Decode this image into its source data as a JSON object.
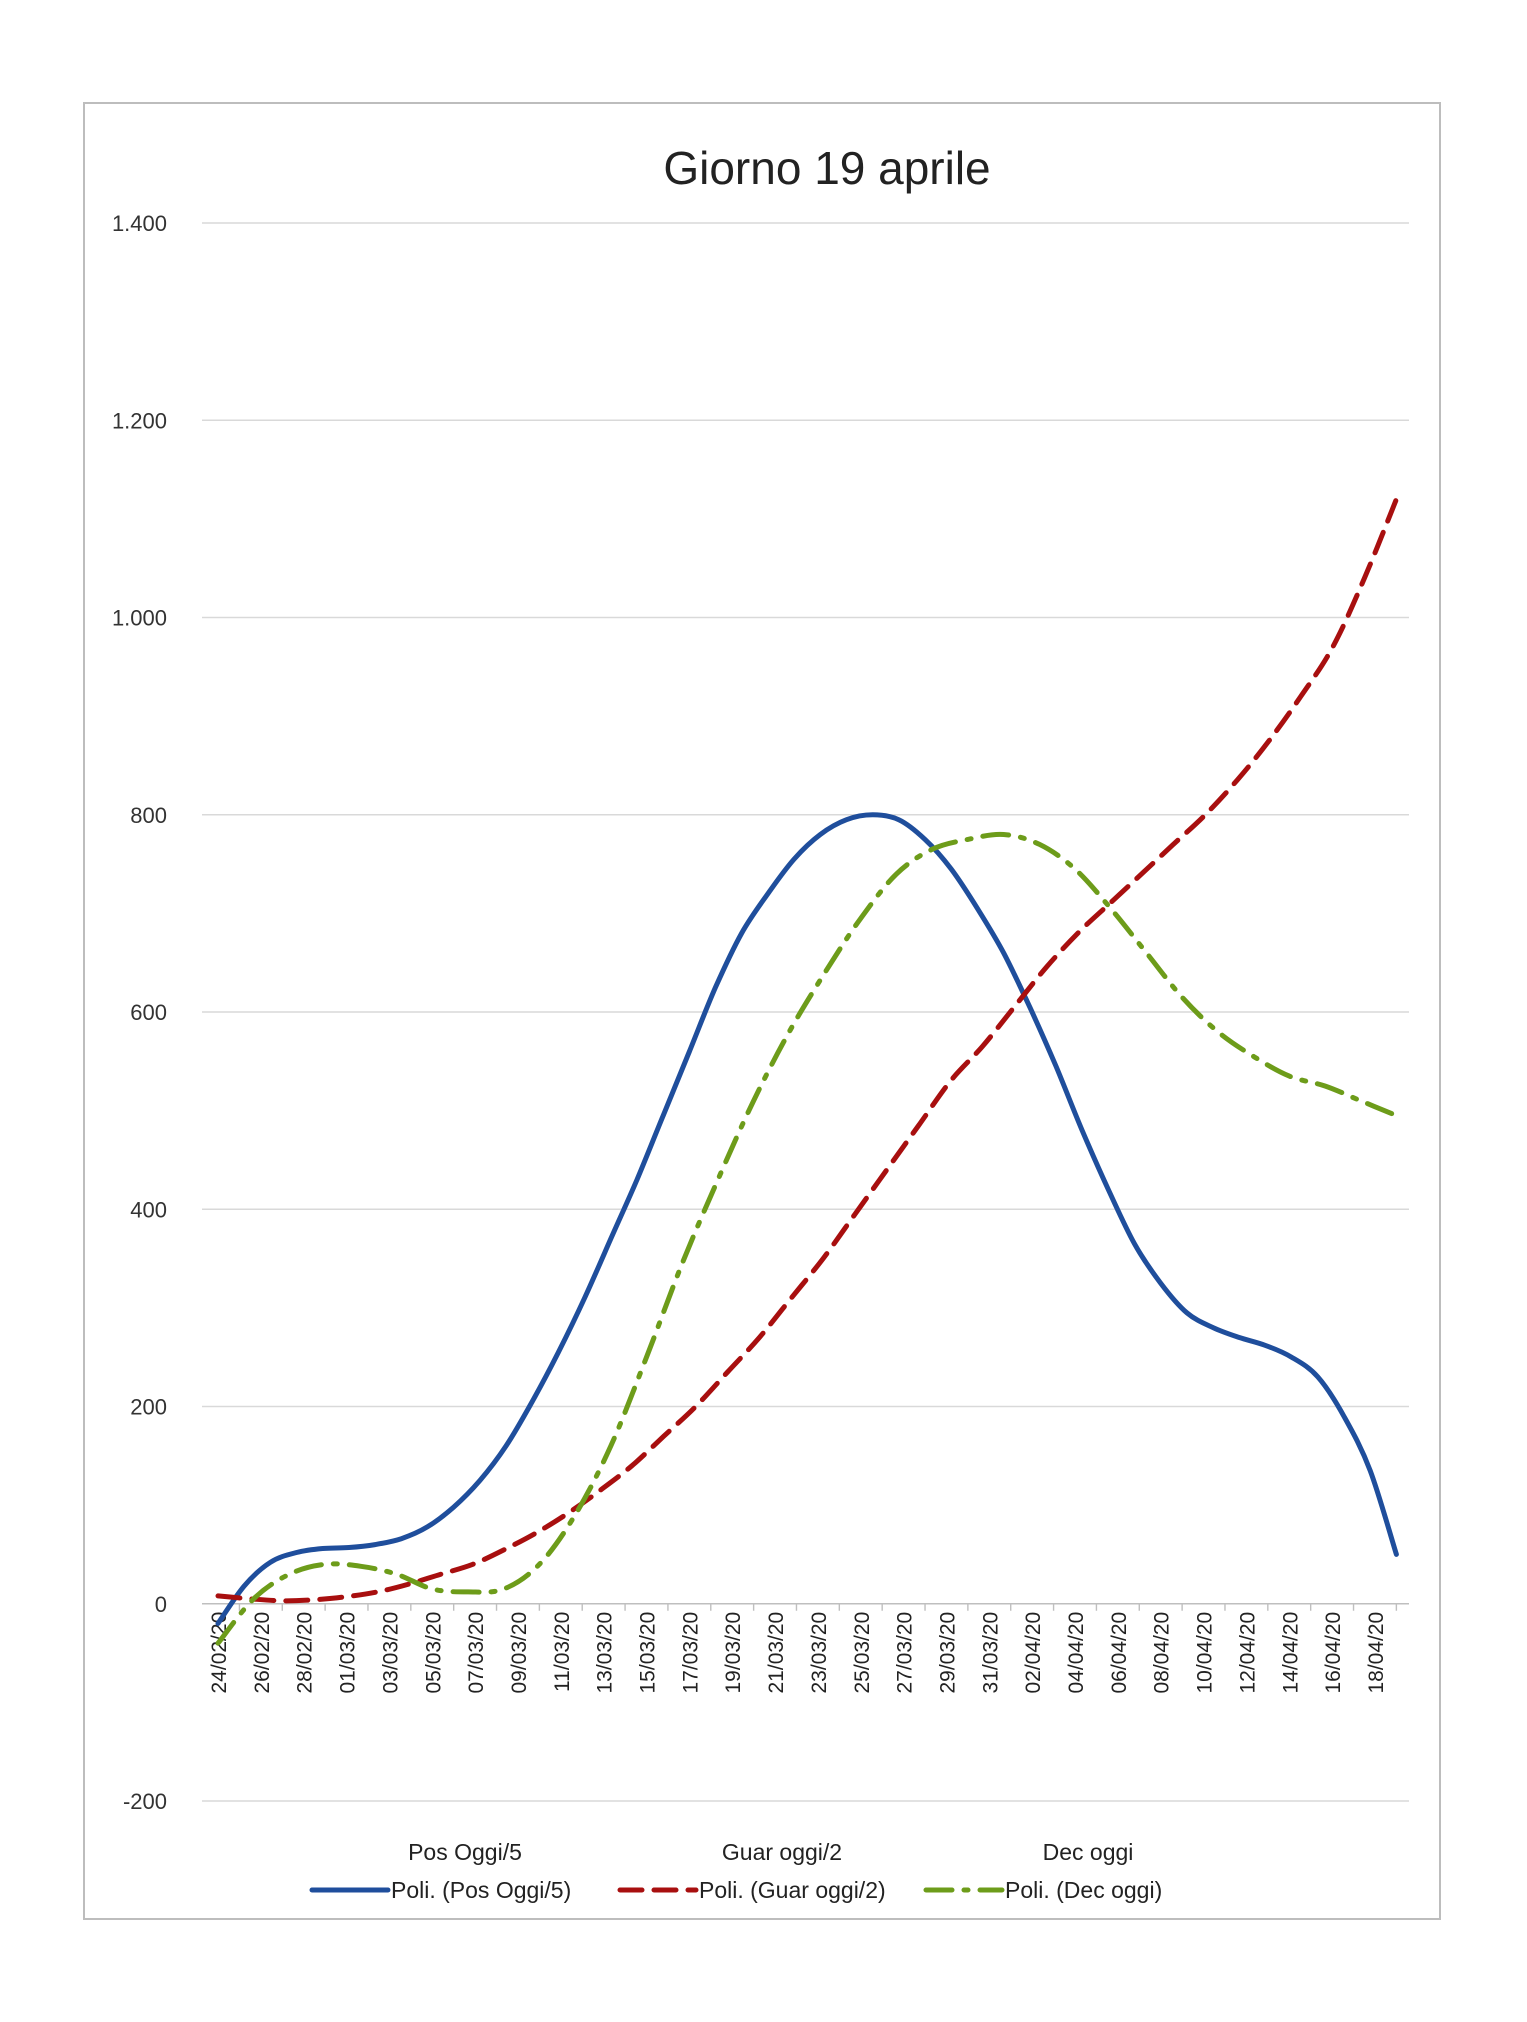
{
  "chart_data": {
    "type": "line",
    "title": "Giorno 19 aprile",
    "xlabel": "",
    "ylabel": "",
    "ylim": [
      -200,
      1400
    ],
    "yticks": [
      -200,
      0,
      200,
      400,
      600,
      800,
      1000,
      1200,
      1400
    ],
    "ytick_labels": [
      "-200",
      "0",
      "200",
      "400",
      "600",
      "800",
      "1.000",
      "1.200",
      "1.400"
    ],
    "grid": true,
    "legend_position": "bottom",
    "x_date_labels": [
      "24/02/20",
      "26/02/20",
      "28/02/20",
      "01/03/20",
      "03/03/20",
      "05/03/20",
      "07/03/20",
      "09/03/20",
      "11/03/20",
      "13/03/20",
      "15/03/20",
      "17/03/20",
      "19/03/20",
      "21/03/20",
      "23/03/20",
      "25/03/20",
      "27/03/20",
      "29/03/20",
      "31/03/20",
      "02/04/20",
      "04/04/20",
      "06/04/20",
      "08/04/20",
      "10/04/20",
      "12/04/20",
      "14/04/20",
      "16/04/20",
      "18/04/20"
    ],
    "x_day_count": 56,
    "legend_names": [
      "Pos Oggi/5",
      "Guar oggi/2",
      "Dec oggi"
    ],
    "series": [
      {
        "name": "Poli. (Pos Oggi/5)",
        "color": "#1f4e9c",
        "dash": "solid",
        "values": [
          -20,
          18,
          42,
          52,
          56,
          57,
          60,
          66,
          78,
          98,
          125,
          160,
          205,
          255,
          310,
          370,
          430,
          495,
          560,
          625,
          680,
          720,
          755,
          780,
          795,
          800,
          795,
          775,
          745,
          705,
          660,
          605,
          545,
          480,
          420,
          365,
          325,
          295,
          280,
          270,
          262,
          250,
          230,
          190,
          135,
          50
        ]
      },
      {
        "name": "Poli. (Guar oggi/2)",
        "color": "#a80f0f",
        "dash": "dashed",
        "values": [
          8,
          5,
          3,
          4,
          7,
          12,
          20,
          30,
          40,
          55,
          72,
          92,
          115,
          140,
          170,
          200,
          235,
          270,
          310,
          350,
          395,
          440,
          485,
          530,
          565,
          605,
          645,
          680,
          710,
          740,
          770,
          800,
          835,
          875,
          920,
          970,
          1040,
          1120
        ]
      },
      {
        "name": "Poli. (Dec oggi)",
        "color": "#6d9c1a",
        "dash": "dashdot",
        "values": [
          -40,
          5,
          30,
          40,
          38,
          30,
          15,
          12,
          15,
          40,
          90,
          160,
          250,
          345,
          430,
          510,
          580,
          640,
          695,
          740,
          765,
          775,
          780,
          770,
          745,
          705,
          660,
          615,
          580,
          555,
          535,
          525,
          510,
          495
        ]
      }
    ]
  }
}
